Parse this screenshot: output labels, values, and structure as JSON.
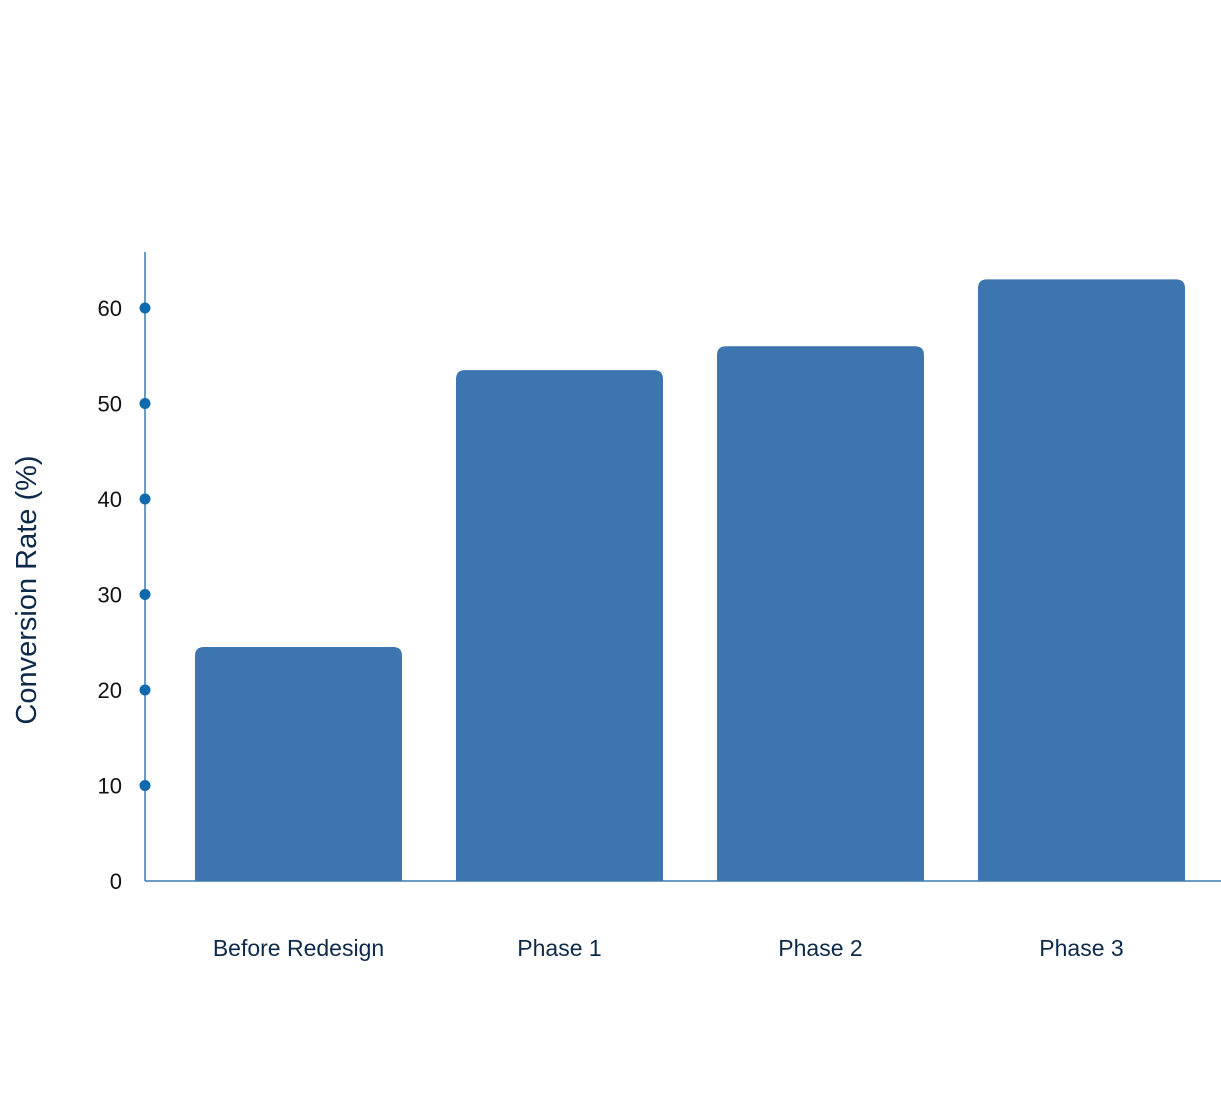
{
  "chart_data": {
    "type": "bar",
    "title": "",
    "xlabel": "",
    "ylabel": "Conversion Rate (%)",
    "categories": [
      "Before Redesign",
      "Phase 1",
      "Phase 2",
      "Phase 3"
    ],
    "values": [
      24.5,
      53.5,
      56,
      63
    ],
    "ylim": [
      0,
      66
    ],
    "yticks": [
      0,
      10,
      20,
      30,
      40,
      50,
      60
    ],
    "grid": false,
    "legend": "none",
    "colors": {
      "bar": "#3c75af",
      "axis": "#3c7ab4",
      "tick_dot": "#0f6aad",
      "category_text": "#0d2a4a",
      "tick_text": "#111111",
      "ylabel_text": "#0d2a4a"
    }
  }
}
